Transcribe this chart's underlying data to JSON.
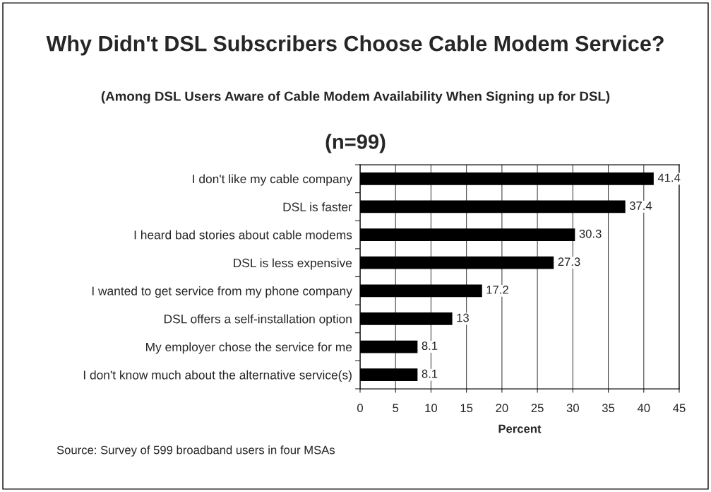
{
  "chart_data": {
    "type": "bar",
    "orientation": "horizontal",
    "title": "Why Didn't DSL Subscribers Choose Cable Modem Service?",
    "subtitle": "(Among DSL Users Aware of Cable Modem Availability When Signing up for DSL)",
    "annotations": [
      "(n=99)",
      "Source: Survey of 599 broadband users in four MSAs"
    ],
    "xlabel": "Percent",
    "categories": [
      "I don't like my cable company",
      "DSL is faster",
      "I heard bad stories about cable modems",
      "DSL is less expensive",
      "I wanted to get service from my phone company",
      "DSL offers a self-installation option",
      "My employer chose the service for me",
      "I don't know much about the alternative service(s)"
    ],
    "values": [
      41.4,
      37.4,
      30.3,
      27.3,
      17.2,
      13,
      8.1,
      8.1
    ],
    "color": "#000000",
    "xlim": [
      0,
      45
    ],
    "xticks": [
      0,
      5,
      10,
      15,
      20,
      25,
      30,
      35,
      40,
      45
    ],
    "grid": "x",
    "data_labels": true
  }
}
